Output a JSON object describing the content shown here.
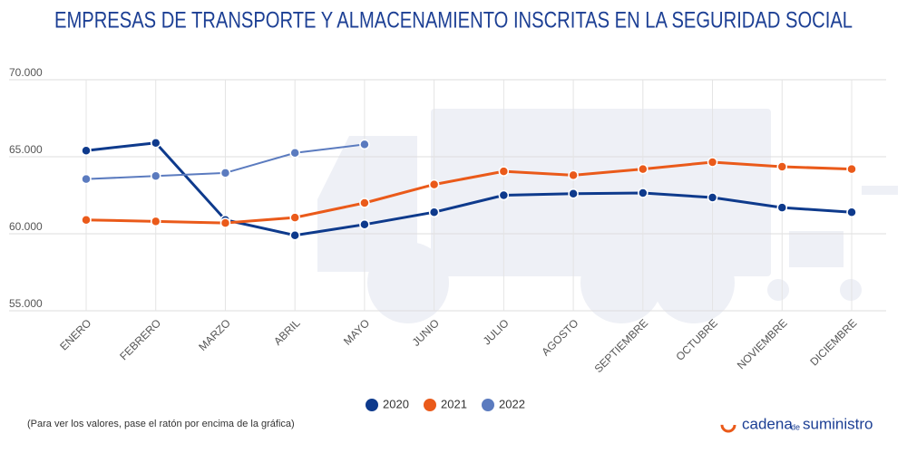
{
  "chart_data": {
    "type": "line",
    "title": "EMPRESAS DE TRANSPORTE Y ALMACENAMIENTO INSCRITAS EN LA SEGURIDAD SOCIAL",
    "categories": [
      "ENERO",
      "FEBRERO",
      "MARZO",
      "ABRIL",
      "MAYO",
      "JUNIO",
      "JULIO",
      "AGOSTO",
      "SEPTIEMBRE",
      "OCTUBRE",
      "NOVIEMBRE",
      "DICIEMBRE"
    ],
    "series": [
      {
        "name": "2020",
        "color": "#0e3a8c",
        "values": [
          65400,
          65900,
          60900,
          59900,
          60600,
          61400,
          62500,
          62600,
          62650,
          62350,
          61700,
          61400
        ]
      },
      {
        "name": "2021",
        "color": "#ea5a1a",
        "values": [
          60900,
          60800,
          60700,
          61050,
          62000,
          63200,
          64050,
          63800,
          64200,
          64650,
          64350,
          64200
        ]
      },
      {
        "name": "2022",
        "color": "#5b7bbf",
        "values": [
          63550,
          63750,
          63950,
          65250,
          65800,
          null,
          null,
          null,
          null,
          null,
          null,
          null
        ]
      }
    ],
    "ylim": [
      55000,
      70000
    ],
    "yticks": [
      {
        "value": 55000,
        "label": "55.000"
      },
      {
        "value": 60000,
        "label": "60.000"
      },
      {
        "value": 65000,
        "label": "65.000"
      },
      {
        "value": 70000,
        "label": "70.000"
      }
    ],
    "grid": true,
    "legend": "bottom",
    "note": "(Para ver los valores, pase el ratón por encima de la gráfica)",
    "brand": {
      "part1": "cadena",
      "part2": "de",
      "part3": "suministro"
    }
  }
}
